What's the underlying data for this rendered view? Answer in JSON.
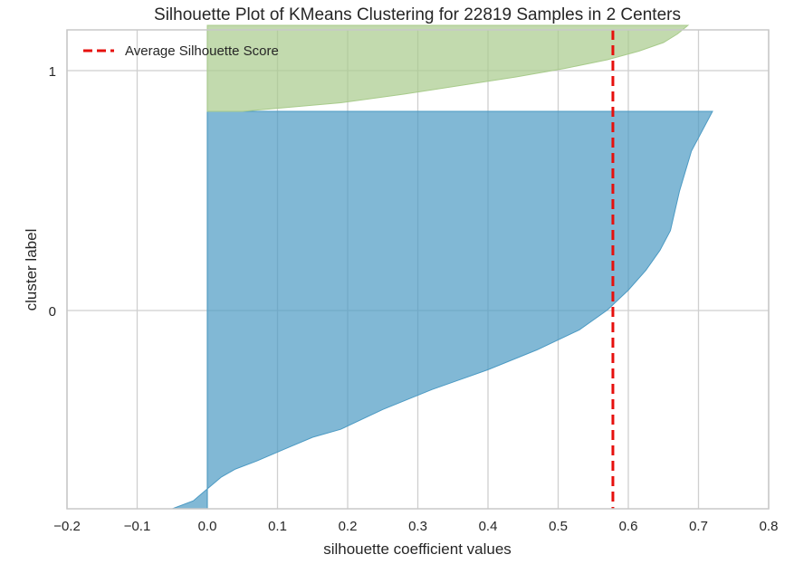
{
  "chart_data": {
    "type": "area",
    "title": "Silhouette Plot of KMeans Clustering for 22819 Samples in 2 Centers",
    "xlabel": "silhouette coefficient values",
    "ylabel": "cluster label",
    "xlim": [
      -0.2,
      0.8
    ],
    "x_ticks": [
      "−0.2",
      "−0.1",
      "0.0",
      "0.1",
      "0.2",
      "0.3",
      "0.4",
      "0.5",
      "0.6",
      "0.7",
      "0.8"
    ],
    "y_ticks": [
      "0",
      "1"
    ],
    "grid": true,
    "legend": {
      "position": "top-left",
      "entries": [
        "Average Silhouette Score"
      ]
    },
    "average_silhouette_score": 0.578,
    "series": [
      {
        "name": "0",
        "color": "#4c9ac3",
        "profile": [
          [
            0.0,
            -0.05
          ],
          [
            0.02,
            -0.02
          ],
          [
            0.05,
            0.0
          ],
          [
            0.08,
            0.02
          ],
          [
            0.1,
            0.04
          ],
          [
            0.12,
            0.07
          ],
          [
            0.15,
            0.11
          ],
          [
            0.18,
            0.15
          ],
          [
            0.2,
            0.19
          ],
          [
            0.25,
            0.25
          ],
          [
            0.3,
            0.32
          ],
          [
            0.35,
            0.4
          ],
          [
            0.4,
            0.47
          ],
          [
            0.45,
            0.53
          ],
          [
            0.5,
            0.57
          ],
          [
            0.55,
            0.6
          ],
          [
            0.6,
            0.625
          ],
          [
            0.65,
            0.645
          ],
          [
            0.7,
            0.66
          ],
          [
            0.8,
            0.673
          ],
          [
            0.9,
            0.69
          ],
          [
            1.0,
            0.72
          ]
        ]
      },
      {
        "name": "1",
        "color": "#a8cb8b",
        "profile": [
          [
            0.0,
            0.05
          ],
          [
            0.1,
            0.19
          ],
          [
            0.2,
            0.28
          ],
          [
            0.3,
            0.36
          ],
          [
            0.4,
            0.44
          ],
          [
            0.5,
            0.51
          ],
          [
            0.6,
            0.57
          ],
          [
            0.7,
            0.615
          ],
          [
            0.8,
            0.65
          ],
          [
            0.9,
            0.67
          ],
          [
            1.0,
            0.685
          ]
        ]
      }
    ]
  }
}
